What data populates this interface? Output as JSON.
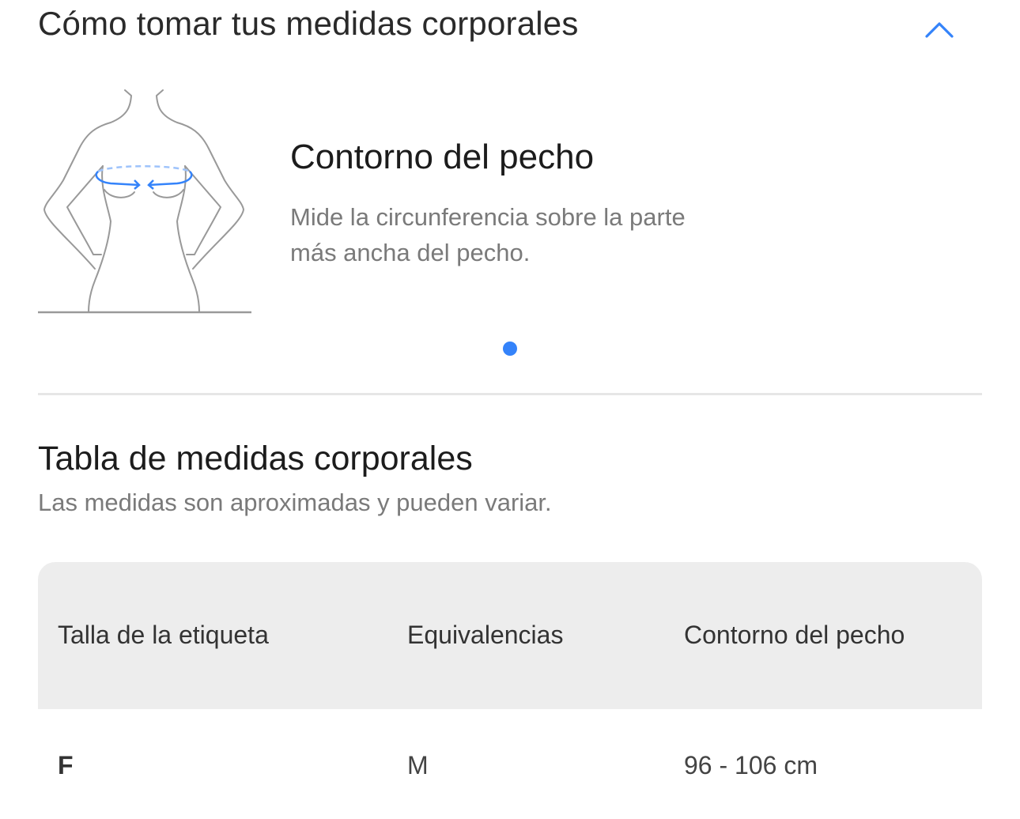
{
  "header": {
    "title": "Cómo tomar tus medidas corporales",
    "collapse_icon": "chevron-up-icon",
    "accent": "#3483fa"
  },
  "measure": {
    "title": "Contorno del pecho",
    "description": "Mide la circunferencia sobre la parte más ancha del pecho.",
    "illustration": "torso-chest-measurement",
    "carousel": {
      "pages": 1,
      "active": 1
    }
  },
  "table_section": {
    "title": "Tabla de medidas corporales",
    "subtitle": "Las medidas son aproximadas y pueden variar."
  },
  "table": {
    "headers": [
      "Talla de la etiqueta",
      "Equivalencias",
      "Contorno del pecho"
    ],
    "rows": [
      [
        "F",
        "M",
        "96 - 106 cm"
      ]
    ]
  }
}
